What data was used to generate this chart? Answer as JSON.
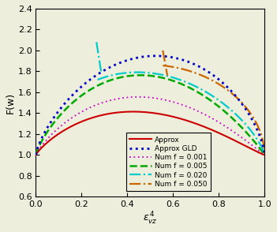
{
  "title": "",
  "xlabel": "$\\varepsilon_{vz}^{\\,4}$",
  "ylabel": "F(w)",
  "xlim": [
    0,
    1
  ],
  "ylim": [
    0.6,
    2.4
  ],
  "xticks": [
    0,
    0.2,
    0.4,
    0.6,
    0.8,
    1
  ],
  "yticks": [
    0.6,
    0.8,
    1.0,
    1.2,
    1.4,
    1.6,
    1.8,
    2.0,
    2.2,
    2.4
  ],
  "background_color": "#eeeedc"
}
